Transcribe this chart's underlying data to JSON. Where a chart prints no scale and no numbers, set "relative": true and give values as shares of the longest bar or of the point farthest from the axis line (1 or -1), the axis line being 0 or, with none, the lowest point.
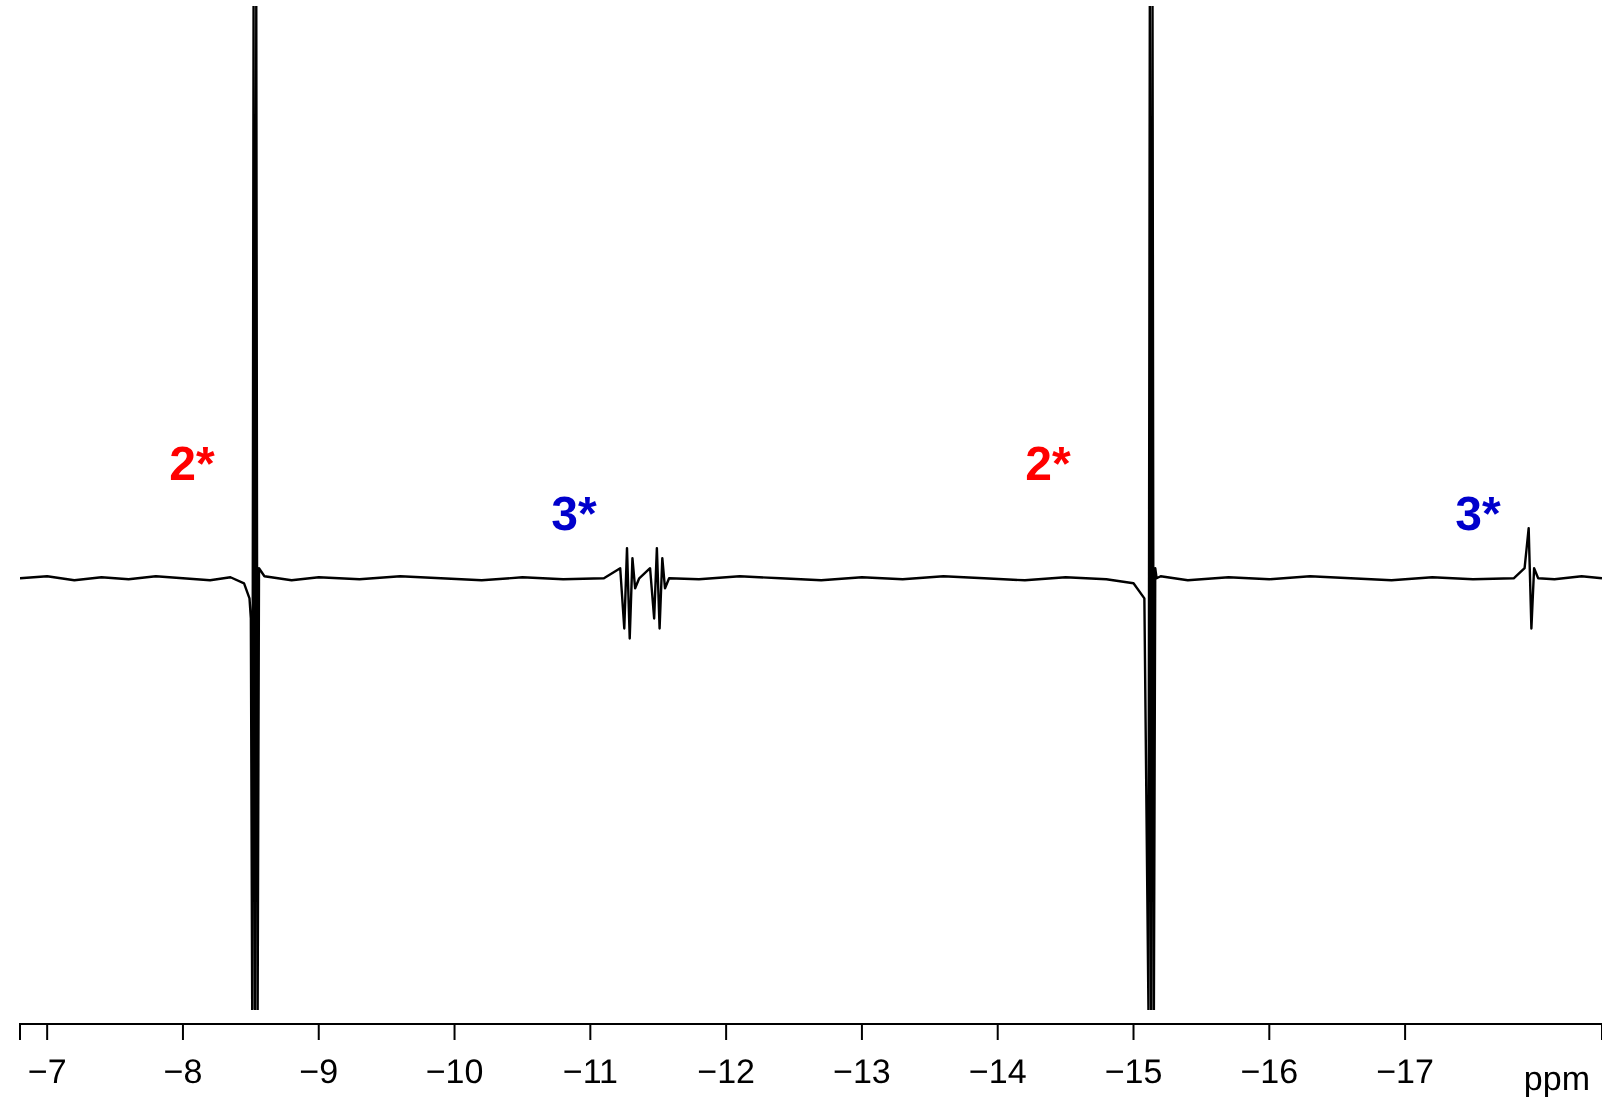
{
  "chart_data": {
    "type": "line",
    "relative": true,
    "xlabel": "ppm",
    "xlim": [
      -6.8,
      -18.45
    ],
    "xticks": [
      -7,
      -8,
      -9,
      -10,
      -11,
      -12,
      -13,
      -14,
      -15,
      -16,
      -17
    ],
    "tick_labels": "x",
    "grid": false,
    "marker": "none",
    "line_style": "solid",
    "annotations": [
      "2*",
      "3*",
      "2*",
      "3*"
    ],
    "series": [
      {
        "color": "#000000",
        "x": [
          -6.8,
          -7.0,
          -7.2,
          -7.4,
          -7.6,
          -7.8,
          -8.0,
          -8.2,
          -8.35,
          -8.45,
          -8.49,
          -8.5,
          -8.51,
          -8.52,
          -8.53,
          -8.54,
          -8.55,
          -8.56,
          -8.6,
          -8.8,
          -9.0,
          -9.3,
          -9.6,
          -9.9,
          -10.2,
          -10.5,
          -10.8,
          -11.1,
          -11.22,
          -11.25,
          -11.27,
          -11.29,
          -11.31,
          -11.33,
          -11.36,
          -11.44,
          -11.47,
          -11.49,
          -11.51,
          -11.53,
          -11.55,
          -11.58,
          -11.8,
          -12.1,
          -12.4,
          -12.7,
          -13.0,
          -13.3,
          -13.6,
          -13.9,
          -14.2,
          -14.5,
          -14.8,
          -15.0,
          -15.08,
          -15.11,
          -15.12,
          -15.13,
          -15.14,
          -15.15,
          -15.16,
          -15.17,
          -15.2,
          -15.4,
          -15.7,
          -16.0,
          -16.3,
          -16.6,
          -16.9,
          -17.2,
          -17.5,
          -17.8,
          -17.88,
          -17.91,
          -17.93,
          -17.95,
          -17.98,
          -18.1,
          -18.3,
          -18.45
        ],
        "values": [
          0.43,
          0.432,
          0.428,
          0.431,
          0.429,
          0.432,
          0.43,
          0.428,
          0.431,
          0.425,
          0.41,
          0.39,
          0.0,
          1.0,
          0.0,
          1.0,
          0.0,
          0.44,
          0.432,
          0.428,
          0.431,
          0.429,
          0.432,
          0.43,
          0.428,
          0.431,
          0.429,
          0.43,
          0.44,
          0.38,
          0.46,
          0.37,
          0.45,
          0.42,
          0.43,
          0.44,
          0.39,
          0.46,
          0.38,
          0.45,
          0.42,
          0.43,
          0.429,
          0.432,
          0.43,
          0.428,
          0.431,
          0.429,
          0.432,
          0.43,
          0.428,
          0.431,
          0.429,
          0.425,
          0.41,
          0.0,
          1.0,
          0.0,
          1.0,
          0.0,
          0.44,
          0.43,
          0.432,
          0.428,
          0.431,
          0.429,
          0.432,
          0.43,
          0.428,
          0.431,
          0.429,
          0.43,
          0.44,
          0.48,
          0.38,
          0.44,
          0.43,
          0.429,
          0.432,
          0.43
        ]
      }
    ]
  }
}
